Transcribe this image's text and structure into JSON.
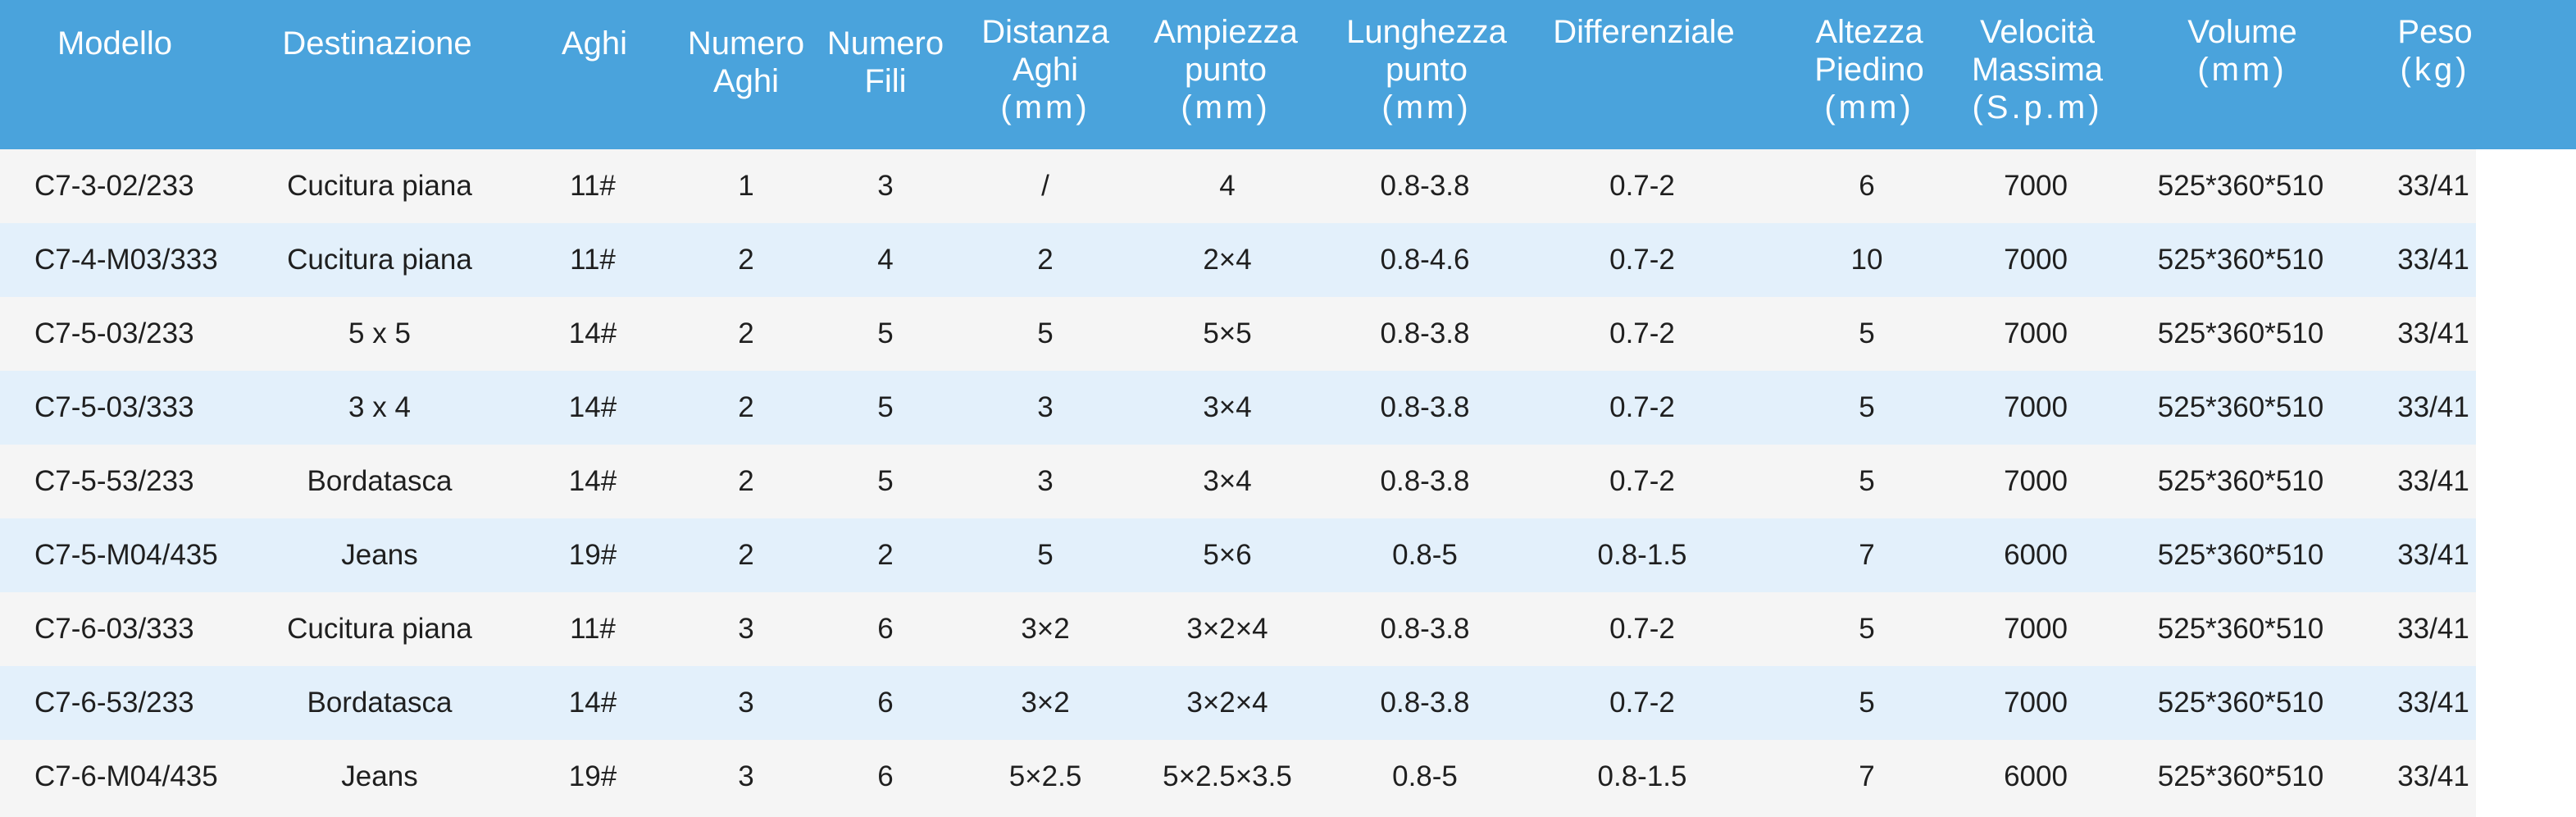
{
  "table": {
    "header": {
      "model": [
        "Modello"
      ],
      "destination": [
        "Destinazione"
      ],
      "needles": [
        "Aghi"
      ],
      "needle_count": [
        "Numero",
        "Aghi"
      ],
      "thread_count": [
        "Numero",
        "Fili"
      ],
      "needle_distance": [
        "Distanza",
        "Aghi",
        "(mm)"
      ],
      "stitch_width": [
        "Ampiezza",
        "punto",
        "(mm)"
      ],
      "stitch_length": [
        "Lunghezza",
        "punto",
        "(mm)"
      ],
      "differential": [
        "Differenziale"
      ],
      "presser_height": [
        "Altezza",
        "Piedino",
        "(mm)"
      ],
      "max_speed": [
        "Velocità",
        "Massima",
        "(S.p.m)"
      ],
      "volume": [
        "Volume",
        "(mm)"
      ],
      "weight": [
        "Peso",
        "(kg)"
      ]
    },
    "rows": [
      [
        "C7-3-02/233",
        "Cucitura piana",
        "11#",
        "1",
        "3",
        "/",
        "4",
        "0.8-3.8",
        "0.7-2",
        "6",
        "7000",
        "525*360*510",
        "33/41"
      ],
      [
        "C7-4-M03/333",
        "Cucitura piana",
        "11#",
        "2",
        "4",
        "2",
        "2×4",
        "0.8-4.6",
        "0.7-2",
        "10",
        "7000",
        "525*360*510",
        "33/41"
      ],
      [
        "C7-5-03/233",
        "5 x 5",
        "14#",
        "2",
        "5",
        "5",
        "5×5",
        "0.8-3.8",
        "0.7-2",
        "5",
        "7000",
        "525*360*510",
        "33/41"
      ],
      [
        "C7-5-03/333",
        "3 x 4",
        "14#",
        "2",
        "5",
        "3",
        "3×4",
        "0.8-3.8",
        "0.7-2",
        "5",
        "7000",
        "525*360*510",
        "33/41"
      ],
      [
        "C7-5-53/233",
        "Bordatasca",
        "14#",
        "2",
        "5",
        "3",
        "3×4",
        "0.8-3.8",
        "0.7-2",
        "5",
        "7000",
        "525*360*510",
        "33/41"
      ],
      [
        "C7-5-M04/435",
        "Jeans",
        "19#",
        "2",
        "2",
        "5",
        "5×6",
        "0.8-5",
        "0.8-1.5",
        "7",
        "6000",
        "525*360*510",
        "33/41"
      ],
      [
        "C7-6-03/333",
        "Cucitura piana",
        "11#",
        "3",
        "6",
        "3×2",
        "3×2×4",
        "0.8-3.8",
        "0.7-2",
        "5",
        "7000",
        "525*360*510",
        "33/41"
      ],
      [
        "C7-6-53/233",
        "Bordatasca",
        "14#",
        "3",
        "6",
        "3×2",
        "3×2×4",
        "0.8-3.8",
        "0.7-2",
        "5",
        "7000",
        "525*360*510",
        "33/41"
      ],
      [
        "C7-6-M04/435",
        "Jeans",
        "19#",
        "3",
        "6",
        "5×2.5",
        "5×2.5×3.5",
        "0.8-5",
        "0.8-1.5",
        "7",
        "6000",
        "525*360*510",
        "33/41"
      ]
    ]
  },
  "colors": {
    "header_background": "#4aa3dc",
    "header_text": "#ffffff",
    "row_odd": "#f5f5f5",
    "row_even": "#e3f0fb",
    "body_text": "#1f1f1f"
  }
}
